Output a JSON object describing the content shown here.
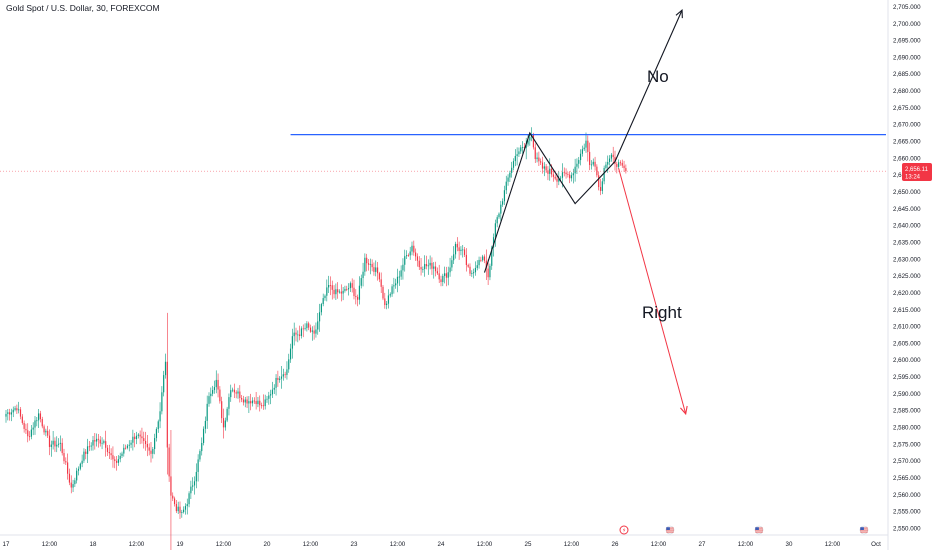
{
  "header": {
    "title": "Gold Spot / U.S. Dollar, 30, FOREXCOM"
  },
  "price_tag": {
    "price": "2,656.11",
    "countdown": "13:24",
    "color": "#f23645"
  },
  "annotations": {
    "up_label": "No",
    "down_label": "Right"
  },
  "colors": {
    "bull": "#089981",
    "bear": "#f23645",
    "resistance": "#2962ff",
    "pattern": "#131722",
    "down_arrow": "#f23645"
  },
  "chart_data": {
    "type": "candlestick",
    "symbol": "Gold Spot / U.S. Dollar",
    "timeframe": "30",
    "exchange": "FOREXCOM",
    "y_range": [
      2548,
      2707
    ],
    "y_ticks": [
      2550,
      2555,
      2560,
      2565,
      2570,
      2575,
      2580,
      2585,
      2590,
      2595,
      2600,
      2605,
      2610,
      2615,
      2620,
      2625,
      2630,
      2635,
      2640,
      2645,
      2650,
      2655,
      2660,
      2665,
      2670,
      2675,
      2680,
      2685,
      2690,
      2695,
      2700,
      2705
    ],
    "x_labels": [
      "17",
      "12:00",
      "18",
      "12:00",
      "19",
      "12:00",
      "20",
      "12:00",
      "23",
      "12:00",
      "24",
      "12:00",
      "25",
      "12:00",
      "26",
      "12:00",
      "27",
      "12:00",
      "30",
      "12:00",
      "Oct"
    ],
    "x_label_bar_index": [
      0,
      24,
      48,
      72,
      96,
      120,
      144,
      168,
      192,
      216,
      240,
      264,
      288,
      312,
      336,
      360,
      384,
      408,
      432,
      456,
      480
    ],
    "last_price": 2656.11,
    "resistance_level": 2667,
    "resistance_start_bar": 157,
    "ohlc_bars": [
      [
        0,
        2584
      ],
      [
        6,
        2586
      ],
      [
        12,
        2577
      ],
      [
        18,
        2584
      ],
      [
        24,
        2575
      ],
      [
        30,
        2575
      ],
      [
        36,
        2562
      ],
      [
        42,
        2571
      ],
      [
        48,
        2576
      ],
      [
        54,
        2576
      ],
      [
        60,
        2569
      ],
      [
        66,
        2574
      ],
      [
        72,
        2578
      ],
      [
        76,
        2575
      ],
      [
        80,
        2572
      ],
      [
        85,
        2585
      ],
      [
        88,
        2600
      ],
      [
        89,
        2573
      ],
      [
        91,
        2560
      ],
      [
        94,
        2556
      ],
      [
        97,
        2554
      ],
      [
        100,
        2558
      ],
      [
        104,
        2565
      ],
      [
        108,
        2575
      ],
      [
        112,
        2590
      ],
      [
        116,
        2594
      ],
      [
        120,
        2580
      ],
      [
        124,
        2592
      ],
      [
        128,
        2590
      ],
      [
        132,
        2588
      ],
      [
        138,
        2588
      ],
      [
        141,
        2586
      ],
      [
        144,
        2588
      ],
      [
        150,
        2595
      ],
      [
        155,
        2597
      ],
      [
        158,
        2607
      ],
      [
        162,
        2608
      ],
      [
        166,
        2610
      ],
      [
        170,
        2607
      ],
      [
        174,
        2616
      ],
      [
        178,
        2622
      ],
      [
        182,
        2620
      ],
      [
        186,
        2620
      ],
      [
        190,
        2622
      ],
      [
        194,
        2618
      ],
      [
        198,
        2630
      ],
      [
        202,
        2628
      ],
      [
        206,
        2625
      ],
      [
        209,
        2616
      ],
      [
        212,
        2620
      ],
      [
        216,
        2624
      ],
      [
        220,
        2630
      ],
      [
        224,
        2634
      ],
      [
        228,
        2628
      ],
      [
        232,
        2628
      ],
      [
        236,
        2628
      ],
      [
        240,
        2624
      ],
      [
        244,
        2626
      ],
      [
        248,
        2634
      ],
      [
        252,
        2632
      ],
      [
        256,
        2625
      ],
      [
        260,
        2629
      ],
      [
        264,
        2630
      ],
      [
        266,
        2625
      ],
      [
        270,
        2640
      ],
      [
        274,
        2648
      ],
      [
        278,
        2656
      ],
      [
        282,
        2662
      ],
      [
        286,
        2663
      ],
      [
        288,
        2665
      ],
      [
        290,
        2668
      ],
      [
        292,
        2660
      ],
      [
        296,
        2657
      ],
      [
        300,
        2656
      ],
      [
        304,
        2654
      ],
      [
        308,
        2655
      ],
      [
        312,
        2655
      ],
      [
        316,
        2660
      ],
      [
        320,
        2665
      ],
      [
        322,
        2658
      ],
      [
        324,
        2660
      ],
      [
        328,
        2650
      ],
      [
        330,
        2658
      ],
      [
        334,
        2660
      ],
      [
        338,
        2658
      ],
      [
        342,
        2656
      ]
    ],
    "pattern_path": [
      [
        264,
        2626
      ],
      [
        289,
        2667.5
      ],
      [
        314,
        2646.5
      ],
      [
        336,
        2659
      ],
      [
        373,
        2704
      ]
    ],
    "down_arrow_path": [
      [
        338,
        2657
      ],
      [
        375,
        2584
      ]
    ]
  }
}
